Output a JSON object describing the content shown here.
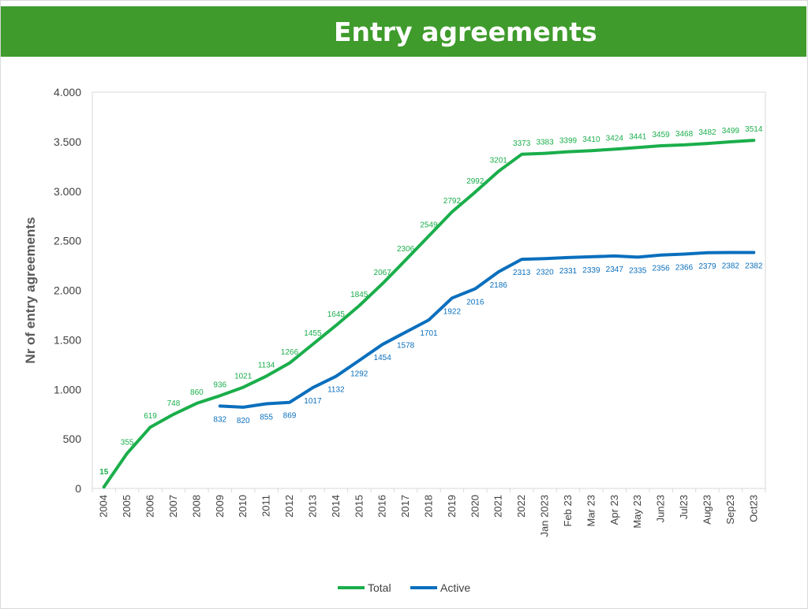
{
  "header": {
    "title": "Entry agreements"
  },
  "chart_data": {
    "type": "line",
    "title": "Entry agreements",
    "ylabel": "Nr of entry agreements",
    "xlabel": "",
    "ylim": [
      0,
      4000
    ],
    "yticks": [
      0,
      500,
      1000,
      1500,
      2000,
      2500,
      3000,
      3500,
      4000
    ],
    "ytick_labels": [
      "0",
      "500",
      "1.000",
      "1.500",
      "2.000",
      "2.500",
      "3.000",
      "3.500",
      "4.000"
    ],
    "categories": [
      "2004",
      "2005",
      "2006",
      "2007",
      "2008",
      "2009",
      "2010",
      "2011",
      "2012",
      "2013",
      "2014",
      "2015",
      "2016",
      "2017",
      "2018",
      "2019",
      "2020",
      "2021",
      "2022",
      "Jan 2023",
      "Feb 23",
      "Mar 23",
      "Apr 23",
      "May 23",
      "Jun23",
      "Jul23",
      "Aug23",
      "Sep23",
      "Oct23"
    ],
    "grid": false,
    "legend_position": "bottom",
    "series": [
      {
        "name": "Total",
        "color": "#1aae4b",
        "values": [
          15,
          355,
          619,
          748,
          860,
          936,
          1021,
          1134,
          1266,
          1455,
          1645,
          1845,
          2067,
          2306,
          2549,
          2792,
          2992,
          3201,
          3373,
          3383,
          3399,
          3410,
          3424,
          3441,
          3459,
          3468,
          3482,
          3499,
          3514
        ]
      },
      {
        "name": "Active",
        "color": "#0a6fbd",
        "values": [
          null,
          null,
          null,
          null,
          null,
          832,
          820,
          855,
          869,
          1017,
          1132,
          1292,
          1454,
          1578,
          1701,
          1922,
          2016,
          2186,
          2313,
          2320,
          2331,
          2339,
          2347,
          2335,
          2356,
          2366,
          2379,
          2382,
          2382
        ]
      }
    ]
  }
}
